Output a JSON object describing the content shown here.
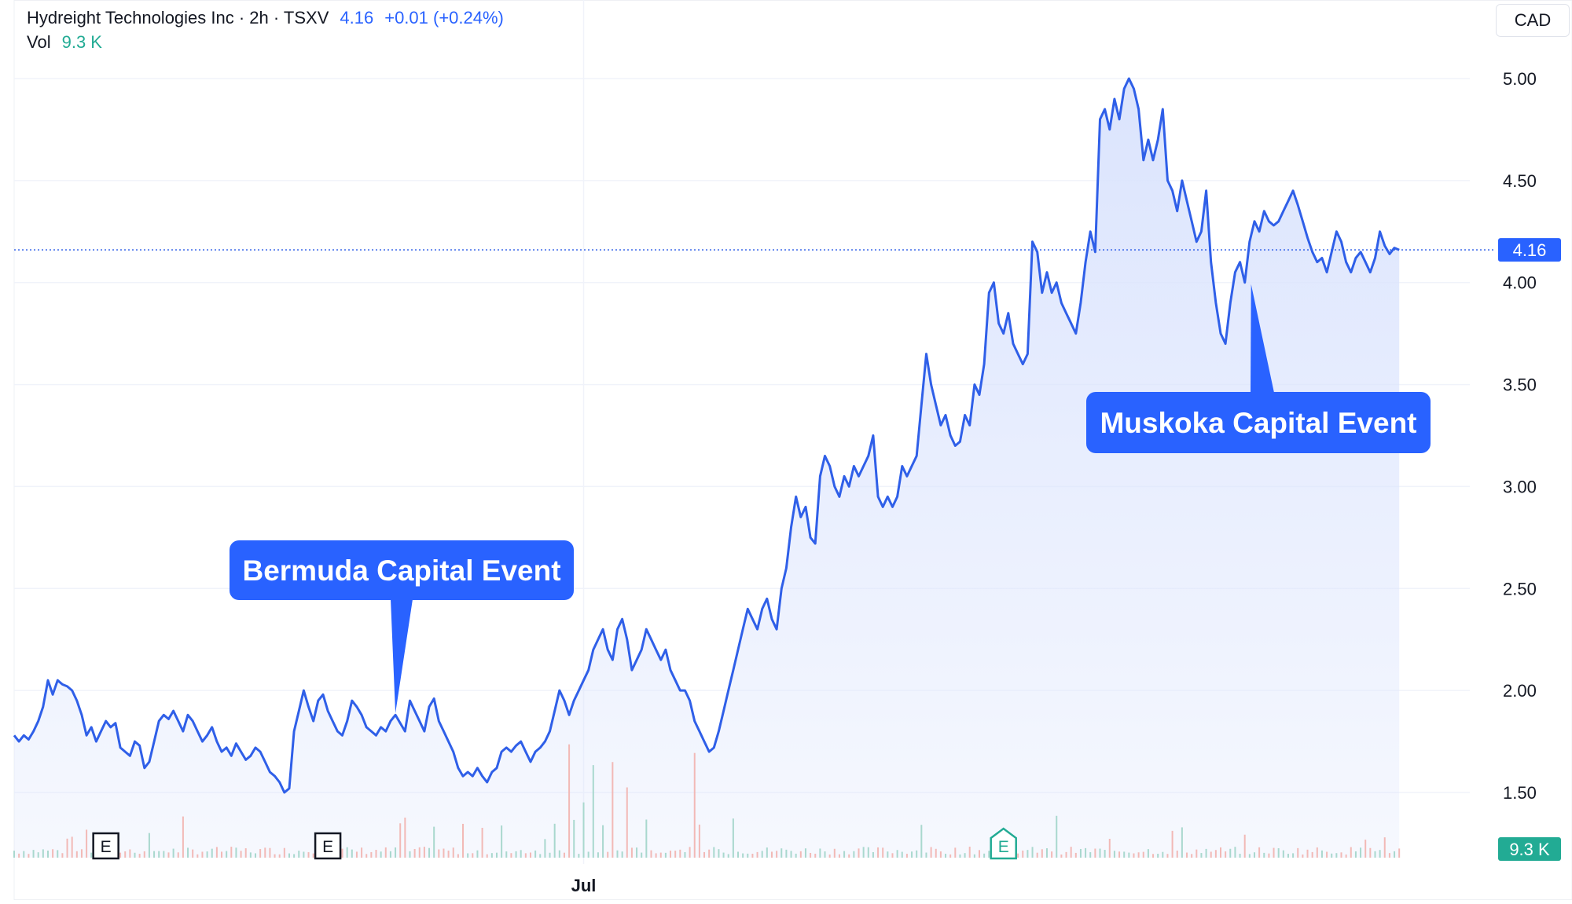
{
  "header": {
    "symbol_line": "Hydreight Technologies Inc · 2h · TSXV",
    "price": "4.16",
    "change": "+0.01 (+0.24%)",
    "vol_label": "Vol",
    "vol_value": "9.3 K"
  },
  "currency": "CAD",
  "colors": {
    "line": "#2f5fe8",
    "fill": "#dbe4fd",
    "callout": "#2962ff",
    "vol_up": "#a9d8ce",
    "vol_down": "#f2b9b6",
    "vol_badge": "#22ab94",
    "price_badge": "#2962ff",
    "earnings_green": "#22ab94"
  },
  "chart_data": {
    "type": "area",
    "title": "",
    "xlabel": "",
    "ylabel": "",
    "ylim": [
      1.15,
      5.15
    ],
    "y_ticks": [
      "5.00",
      "4.50",
      "4.00",
      "3.50",
      "3.00",
      "2.50",
      "2.00",
      "1.50"
    ],
    "x_ticks": [
      {
        "label": "Jul",
        "index": 118
      }
    ],
    "x_index_range": [
      0,
      300
    ],
    "current_price": 4.16,
    "current_price_label": "4.16",
    "volume_badge_label": "9.3 K",
    "series": [
      {
        "values": [
          1.78,
          1.75,
          1.78,
          1.76,
          1.8,
          1.85,
          1.92,
          2.05,
          1.98,
          2.05,
          2.03,
          2.02,
          2.0,
          1.95,
          1.88,
          1.78,
          1.82,
          1.75,
          1.8,
          1.85,
          1.82,
          1.84,
          1.72,
          1.7,
          1.68,
          1.75,
          1.73,
          1.62,
          1.65,
          1.75,
          1.85,
          1.88,
          1.86,
          1.9,
          1.85,
          1.8,
          1.88,
          1.85,
          1.8,
          1.75,
          1.78,
          1.82,
          1.75,
          1.7,
          1.72,
          1.68,
          1.74,
          1.7,
          1.66,
          1.68,
          1.72,
          1.7,
          1.65,
          1.6,
          1.58,
          1.55,
          1.5,
          1.52,
          1.8,
          1.9,
          2.0,
          1.92,
          1.85,
          1.95,
          1.98,
          1.9,
          1.85,
          1.8,
          1.78,
          1.85,
          1.95,
          1.92,
          1.88,
          1.82,
          1.8,
          1.78,
          1.82,
          1.8,
          1.85,
          1.88,
          1.84,
          1.8,
          1.95,
          1.9,
          1.85,
          1.8,
          1.92,
          1.96,
          1.85,
          1.8,
          1.75,
          1.7,
          1.62,
          1.58,
          1.6,
          1.58,
          1.62,
          1.58,
          1.55,
          1.6,
          1.62,
          1.7,
          1.72,
          1.7,
          1.73,
          1.75,
          1.7,
          1.65,
          1.7,
          1.72,
          1.75,
          1.8,
          1.9,
          2.0,
          1.95,
          1.88,
          1.95,
          2.0,
          2.05,
          2.1,
          2.2,
          2.25,
          2.3,
          2.2,
          2.15,
          2.3,
          2.35,
          2.25,
          2.1,
          2.15,
          2.2,
          2.3,
          2.25,
          2.2,
          2.15,
          2.2,
          2.1,
          2.05,
          2.0,
          2.0,
          1.95,
          1.85,
          1.8,
          1.75,
          1.7,
          1.72,
          1.8,
          1.9,
          2.0,
          2.1,
          2.2,
          2.3,
          2.4,
          2.35,
          2.3,
          2.4,
          2.45,
          2.35,
          2.3,
          2.5,
          2.6,
          2.8,
          2.95,
          2.85,
          2.9,
          2.75,
          2.72,
          3.05,
          3.15,
          3.1,
          3.0,
          2.95,
          3.05,
          3.0,
          3.1,
          3.05,
          3.1,
          3.15,
          3.25,
          2.95,
          2.9,
          2.95,
          2.9,
          2.95,
          3.1,
          3.05,
          3.1,
          3.15,
          3.4,
          3.65,
          3.5,
          3.4,
          3.3,
          3.35,
          3.25,
          3.2,
          3.22,
          3.35,
          3.3,
          3.5,
          3.45,
          3.6,
          3.95,
          4.0,
          3.8,
          3.75,
          3.85,
          3.7,
          3.65,
          3.6,
          3.65,
          4.2,
          4.15,
          3.95,
          4.05,
          3.95,
          4.0,
          3.9,
          3.85,
          3.8,
          3.75,
          3.9,
          4.1,
          4.25,
          4.15,
          4.8,
          4.85,
          4.75,
          4.9,
          4.8,
          4.95,
          5.0,
          4.95,
          4.85,
          4.6,
          4.7,
          4.6,
          4.7,
          4.85,
          4.5,
          4.45,
          4.35,
          4.5,
          4.4,
          4.3,
          4.2,
          4.25,
          4.45,
          4.1,
          3.9,
          3.75,
          3.7,
          3.9,
          4.05,
          4.1,
          4.0,
          4.2,
          4.3,
          4.25,
          4.35,
          4.3,
          4.28,
          4.3,
          4.35,
          4.4,
          4.45,
          4.38,
          4.3,
          4.22,
          4.15,
          4.1,
          4.12,
          4.05,
          4.15,
          4.25,
          4.2,
          4.1,
          4.05,
          4.12,
          4.15,
          4.1,
          4.05,
          4.12,
          4.25,
          4.18,
          4.14,
          4.17,
          4.16
        ]
      }
    ],
    "annotations": [
      {
        "label": "Bermuda Capital Event",
        "index": 79
      },
      {
        "label": "Muskoka Capital Event",
        "index": 255
      }
    ],
    "events": [
      {
        "label": "E",
        "index": 19,
        "style": "dark"
      },
      {
        "label": "E",
        "index": 65,
        "style": "dark"
      },
      {
        "label": "E",
        "index": 205,
        "style": "green"
      }
    ]
  }
}
